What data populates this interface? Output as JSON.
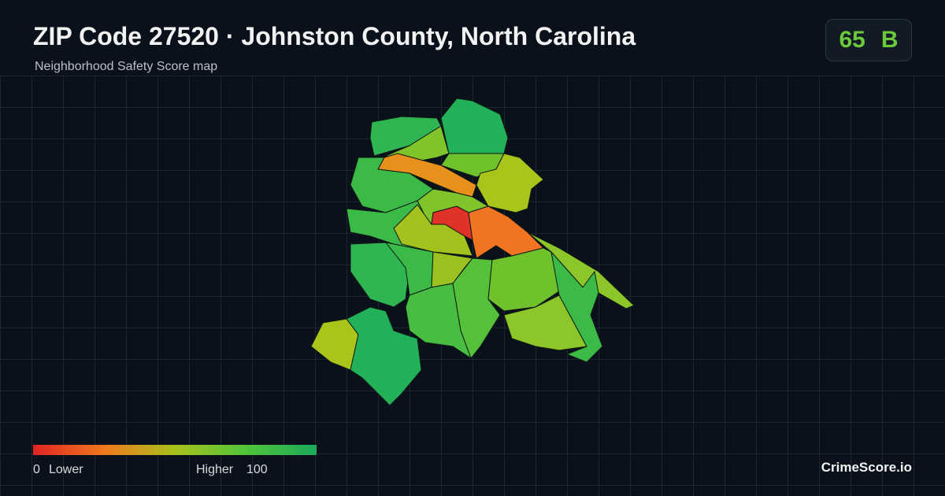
{
  "header": {
    "title": "ZIP Code 27520 · Johnston County, North Carolina",
    "subtitle": "Neighborhood Safety Score map"
  },
  "score": {
    "value": 65,
    "grade": "B"
  },
  "legend": {
    "min": 0,
    "min_label": "Lower",
    "max_label": "Higher",
    "max": 100
  },
  "brand": "CrimeScore.io"
}
